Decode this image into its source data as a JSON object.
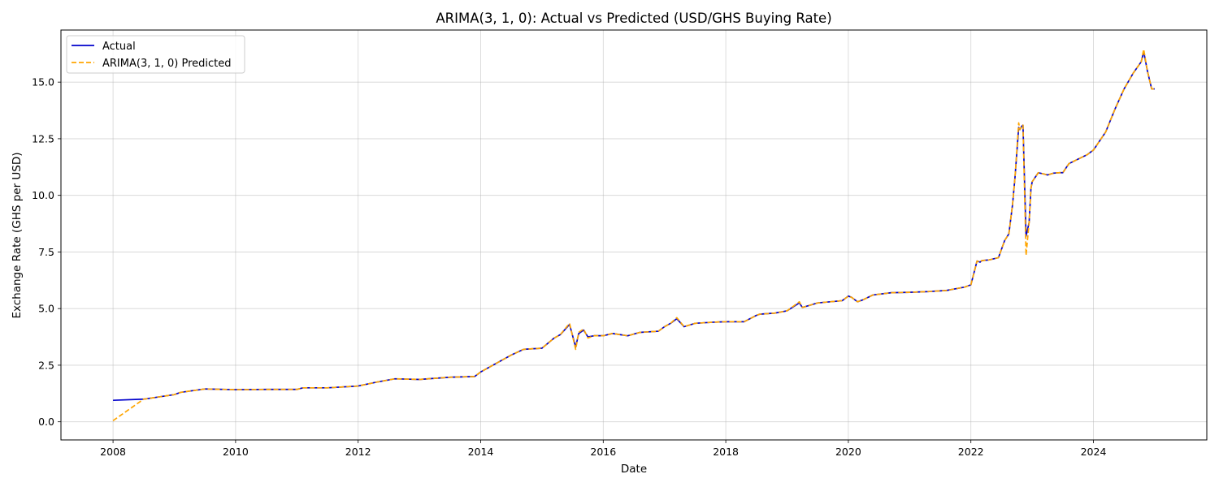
{
  "chart_data": {
    "type": "line",
    "title": "ARIMA(3, 1, 0): Actual vs Predicted (USD/GHS Buying Rate)",
    "xlabel": "Date",
    "ylabel": "Exchange Rate (GHS per USD)",
    "xlim": [
      2007.15,
      2025.85
    ],
    "ylim": [
      -0.8,
      17.3
    ],
    "xticks": [
      2008,
      2010,
      2012,
      2014,
      2016,
      2018,
      2020,
      2022,
      2024
    ],
    "yticks": [
      0.0,
      2.5,
      5.0,
      7.5,
      10.0,
      12.5,
      15.0
    ],
    "ytick_labels": [
      "0.0",
      "2.5",
      "5.0",
      "7.5",
      "10.0",
      "12.5",
      "15.0"
    ],
    "grid": true,
    "legend_position": "top-left",
    "x": [
      2008.0,
      2008.5,
      2009.0,
      2009.1,
      2009.5,
      2010.0,
      2010.5,
      2011.0,
      2011.1,
      2011.5,
      2012.0,
      2012.3,
      2012.6,
      2013.0,
      2013.5,
      2013.9,
      2014.0,
      2014.5,
      2014.7,
      2015.0,
      2015.2,
      2015.3,
      2015.45,
      2015.55,
      2015.6,
      2015.68,
      2015.75,
      2015.85,
      2016.0,
      2016.15,
      2016.4,
      2016.6,
      2016.9,
      2017.0,
      2017.1,
      2017.2,
      2017.32,
      2017.5,
      2017.8,
      2018.0,
      2018.3,
      2018.5,
      2018.55,
      2018.8,
      2019.0,
      2019.2,
      2019.25,
      2019.5,
      2019.9,
      2020.0,
      2020.05,
      2020.15,
      2020.25,
      2020.4,
      2020.7,
      2021.0,
      2021.3,
      2021.6,
      2021.9,
      2022.0,
      2022.1,
      2022.15,
      2022.18,
      2022.3,
      2022.45,
      2022.55,
      2022.62,
      2022.68,
      2022.72,
      2022.78,
      2022.8,
      2022.83,
      2022.85,
      2022.9,
      2022.95,
      2022.98,
      2023.0,
      2023.05,
      2023.1,
      2023.18,
      2023.25,
      2023.35,
      2023.45,
      2023.5,
      2023.6,
      2023.75,
      2023.9,
      2024.0,
      2024.2,
      2024.35,
      2024.5,
      2024.65,
      2024.78,
      2024.82,
      2024.88,
      2024.95,
      2025.0
    ],
    "series": [
      {
        "name": "Actual",
        "color": "#0000cc",
        "style": "solid",
        "values": [
          0.95,
          1.0,
          1.2,
          1.3,
          1.45,
          1.42,
          1.43,
          1.43,
          1.5,
          1.5,
          1.58,
          1.75,
          1.9,
          1.87,
          1.97,
          2.0,
          2.2,
          2.95,
          3.2,
          3.25,
          3.7,
          3.85,
          4.3,
          3.3,
          3.9,
          4.05,
          3.75,
          3.8,
          3.8,
          3.9,
          3.8,
          3.95,
          4.0,
          4.2,
          4.35,
          4.55,
          4.2,
          4.35,
          4.4,
          4.42,
          4.42,
          4.7,
          4.75,
          4.8,
          4.9,
          5.25,
          5.05,
          5.25,
          5.35,
          5.55,
          5.5,
          5.3,
          5.4,
          5.6,
          5.7,
          5.72,
          5.75,
          5.8,
          5.95,
          6.05,
          7.1,
          7.05,
          7.12,
          7.15,
          7.25,
          8.0,
          8.3,
          9.6,
          10.8,
          13.0,
          12.9,
          13.05,
          13.1,
          8.2,
          8.8,
          10.3,
          10.6,
          10.8,
          11.0,
          10.95,
          10.9,
          10.98,
          11.0,
          11.0,
          11.4,
          11.6,
          11.8,
          12.0,
          12.8,
          13.8,
          14.7,
          15.4,
          15.9,
          16.35,
          15.5,
          14.7,
          14.7
        ]
      },
      {
        "name": "ARIMA(3, 1, 0) Predicted",
        "color": "#ffa500",
        "style": "dashed",
        "values": [
          0.05,
          1.0,
          1.2,
          1.3,
          1.45,
          1.42,
          1.43,
          1.43,
          1.5,
          1.5,
          1.58,
          1.75,
          1.9,
          1.87,
          1.97,
          2.0,
          2.2,
          2.95,
          3.2,
          3.25,
          3.7,
          3.85,
          4.35,
          3.2,
          3.95,
          4.1,
          3.7,
          3.8,
          3.8,
          3.9,
          3.8,
          3.95,
          4.0,
          4.2,
          4.35,
          4.6,
          4.2,
          4.35,
          4.4,
          4.42,
          4.42,
          4.7,
          4.75,
          4.8,
          4.9,
          5.3,
          5.05,
          5.25,
          5.35,
          5.55,
          5.5,
          5.3,
          5.4,
          5.6,
          5.7,
          5.72,
          5.75,
          5.8,
          5.95,
          6.05,
          7.1,
          7.05,
          7.12,
          7.15,
          7.25,
          8.0,
          8.3,
          9.6,
          10.8,
          13.2,
          12.9,
          13.1,
          13.1,
          7.35,
          8.8,
          10.3,
          10.6,
          10.8,
          11.0,
          10.95,
          10.9,
          10.98,
          11.0,
          11.0,
          11.4,
          11.6,
          11.8,
          12.0,
          12.8,
          13.8,
          14.7,
          15.4,
          15.9,
          16.45,
          15.5,
          14.7,
          14.7
        ]
      }
    ]
  }
}
